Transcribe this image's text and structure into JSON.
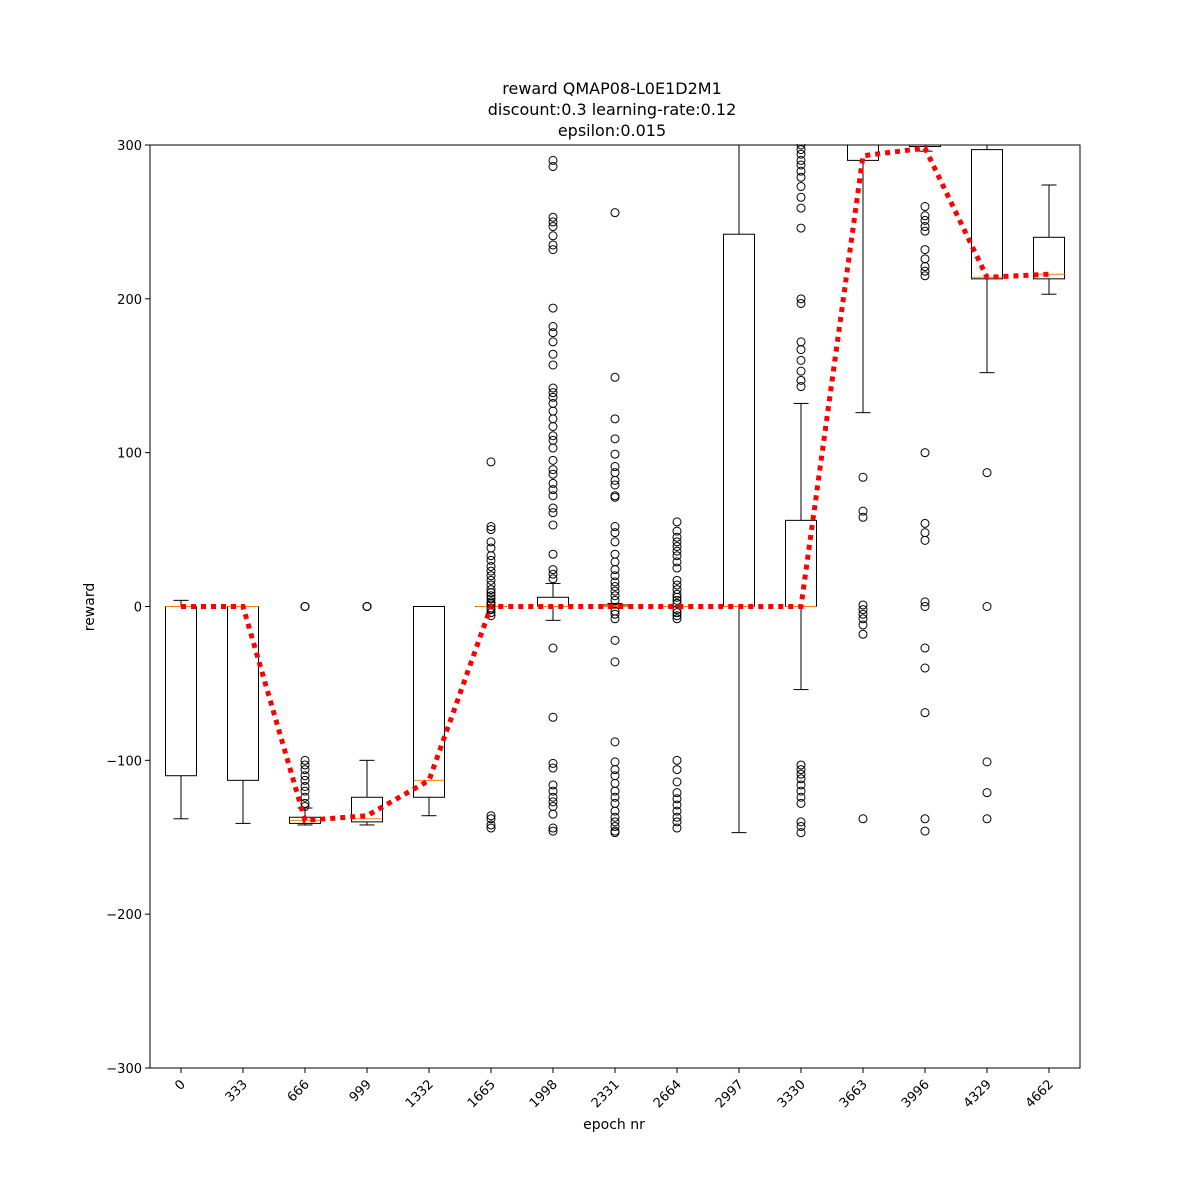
{
  "chart_data": {
    "type": "box",
    "title_lines": [
      "reward QMAP08-L0E1D2M1",
      "discount:0.3 learning-rate:0.12",
      "epsilon:0.015"
    ],
    "xlabel": "epoch nr",
    "ylabel": "reward",
    "ylim": [
      -300,
      300
    ],
    "yticks": [
      -300,
      -200,
      -100,
      0,
      100,
      200,
      300
    ],
    "ytick_labels": [
      "−300",
      "−200",
      "−100",
      "0",
      "100",
      "200",
      "300"
    ],
    "categories": [
      "0",
      "333",
      "666",
      "999",
      "1332",
      "1665",
      "1998",
      "2331",
      "2664",
      "2997",
      "3330",
      "3663",
      "3996",
      "4329",
      "4662"
    ],
    "grid": false,
    "boxes": [
      {
        "q1": -110,
        "median": 0,
        "q3": 0,
        "whisker_low": -138,
        "whisker_high": 4,
        "outliers": []
      },
      {
        "q1": -113,
        "median": 0,
        "q3": 0,
        "whisker_low": -141,
        "whisker_high": 0,
        "outliers": []
      },
      {
        "q1": -141,
        "median": -139,
        "q3": -137,
        "whisker_low": -142,
        "whisker_high": -131,
        "outliers": [
          0,
          0,
          0,
          -100,
          -103,
          -106,
          -110,
          -113,
          -117,
          -120,
          -124,
          -128,
          -130
        ]
      },
      {
        "q1": -140,
        "median": -138,
        "q3": -124,
        "whisker_low": -142,
        "whisker_high": -100,
        "outliers": [
          0,
          0,
          0,
          0
        ]
      },
      {
        "q1": -124,
        "median": -113,
        "q3": 0,
        "whisker_low": -136,
        "whisker_high": 0,
        "outliers": []
      },
      {
        "q1": 0,
        "median": 0,
        "q3": 0,
        "whisker_low": 0,
        "whisker_high": 0,
        "outliers": [
          94,
          52,
          50,
          42,
          38,
          33,
          30,
          26,
          23,
          20,
          17,
          14,
          11,
          9,
          7,
          5,
          3,
          2,
          1,
          -1,
          -2,
          -4,
          -6,
          -136,
          -138,
          -142,
          -144
        ]
      },
      {
        "q1": 0,
        "median": 0,
        "q3": 6,
        "whisker_low": -9,
        "whisker_high": 15,
        "outliers": [
          290,
          286,
          253,
          250,
          247,
          241,
          235,
          232,
          194,
          182,
          178,
          172,
          164,
          157,
          142,
          139,
          136,
          132,
          127,
          122,
          117,
          111,
          108,
          103,
          95,
          89,
          86,
          80,
          76,
          72,
          64,
          61,
          53,
          34,
          24,
          21,
          18,
          -27,
          -72,
          -102,
          -105,
          -116,
          -120,
          -124,
          -127,
          -130,
          -135,
          -144,
          -146
        ]
      },
      {
        "q1": 0,
        "median": 0,
        "q3": 1,
        "whisker_low": -1,
        "whisker_high": 2,
        "outliers": [
          256,
          149,
          122,
          109,
          99,
          91,
          87,
          82,
          79,
          72,
          71,
          52,
          48,
          42,
          34,
          29,
          24,
          20,
          16,
          13,
          10,
          7,
          4,
          -3,
          -5,
          -8,
          -22,
          -36,
          -88,
          -101,
          -106,
          -110,
          -115,
          -120,
          -124,
          -128,
          -133,
          -137,
          -140,
          -143,
          -146,
          -147
        ]
      },
      {
        "q1": 0,
        "median": 0,
        "q3": 0,
        "whisker_low": 0,
        "whisker_high": 0,
        "outliers": [
          55,
          49,
          45,
          42,
          39,
          36,
          33,
          29,
          25,
          17,
          14,
          11,
          8,
          6,
          4,
          2,
          -2,
          -4,
          -6,
          -8,
          -100,
          -106,
          -114,
          -121,
          -125,
          -129,
          -133,
          -137,
          -140,
          -144
        ]
      },
      {
        "q1": 0,
        "median": 0,
        "q3": 242,
        "whisker_low": -147,
        "whisker_high": 300,
        "outliers": []
      },
      {
        "q1": 0,
        "median": 0,
        "q3": 56,
        "whisker_low": -54,
        "whisker_high": 132,
        "outliers": [
          300,
          297,
          294,
          290,
          287,
          283,
          279,
          273,
          266,
          259,
          246,
          200,
          197,
          172,
          167,
          160,
          153,
          147,
          143,
          -103,
          -106,
          -109,
          -112,
          -116,
          -120,
          -124,
          -128,
          -140,
          -143,
          -147
        ]
      },
      {
        "q1": 290,
        "median": 300,
        "q3": 300,
        "whisker_low": 126,
        "whisker_high": 300,
        "outliers": [
          84,
          62,
          58,
          1,
          -2,
          -5,
          -8,
          -12,
          -18,
          -138
        ]
      },
      {
        "q1": 299,
        "median": 300,
        "q3": 300,
        "whisker_low": 296,
        "whisker_high": 300,
        "outliers": [
          260,
          254,
          251,
          247,
          244,
          232,
          226,
          221,
          218,
          215,
          100,
          54,
          48,
          43,
          3,
          0,
          -27,
          -40,
          -69,
          -138,
          -146
        ]
      },
      {
        "q1": 213,
        "median": 214,
        "q3": 297,
        "whisker_low": 152,
        "whisker_high": 300,
        "outliers": [
          87,
          0,
          -101,
          -121,
          -138
        ]
      },
      {
        "q1": 213,
        "median": 216,
        "q3": 240,
        "whisker_low": 203,
        "whisker_high": 274,
        "outliers": []
      }
    ],
    "mean_line": {
      "color": "#ff0000",
      "style": "dotted",
      "values": [
        0,
        0,
        -139,
        -136,
        -113,
        0,
        0,
        0,
        0,
        0,
        0,
        293,
        298,
        214,
        216
      ]
    },
    "colors": {
      "box": "#000000",
      "median": "#ff7f0e",
      "mean": "#ff0000",
      "outlier": "#000000"
    }
  }
}
